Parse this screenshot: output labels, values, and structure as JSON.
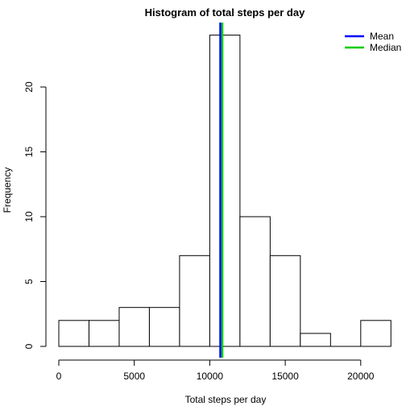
{
  "chart_data": {
    "type": "histogram",
    "title": "Histogram of total steps per day",
    "xlabel": "Total steps per day",
    "ylabel": "Frequency",
    "bin_width": 2000,
    "bins": [
      {
        "start": 0,
        "end": 2000,
        "count": 2
      },
      {
        "start": 2000,
        "end": 4000,
        "count": 2
      },
      {
        "start": 4000,
        "end": 6000,
        "count": 3
      },
      {
        "start": 6000,
        "end": 8000,
        "count": 3
      },
      {
        "start": 8000,
        "end": 10000,
        "count": 7
      },
      {
        "start": 10000,
        "end": 12000,
        "count": 24
      },
      {
        "start": 12000,
        "end": 14000,
        "count": 10
      },
      {
        "start": 14000,
        "end": 16000,
        "count": 7
      },
      {
        "start": 16000,
        "end": 18000,
        "count": 1
      },
      {
        "start": 18000,
        "end": 20000,
        "count": 0
      },
      {
        "start": 20000,
        "end": 22000,
        "count": 2
      }
    ],
    "x_ticks": [
      0,
      5000,
      10000,
      15000,
      20000
    ],
    "y_ticks": [
      0,
      5,
      10,
      15,
      20
    ],
    "xlim": [
      0,
      22000
    ],
    "ylim": [
      0,
      24
    ],
    "vlines": [
      {
        "name": "Mean",
        "value": 10766,
        "color": "#0000ff"
      },
      {
        "name": "Median",
        "value": 10766,
        "color": "#00cd00"
      }
    ],
    "legend": {
      "position": "top-right",
      "entries": [
        {
          "label": "Mean",
          "color": "#0000ff"
        },
        {
          "label": "Median",
          "color": "#00cd00"
        }
      ]
    },
    "grid": false
  }
}
